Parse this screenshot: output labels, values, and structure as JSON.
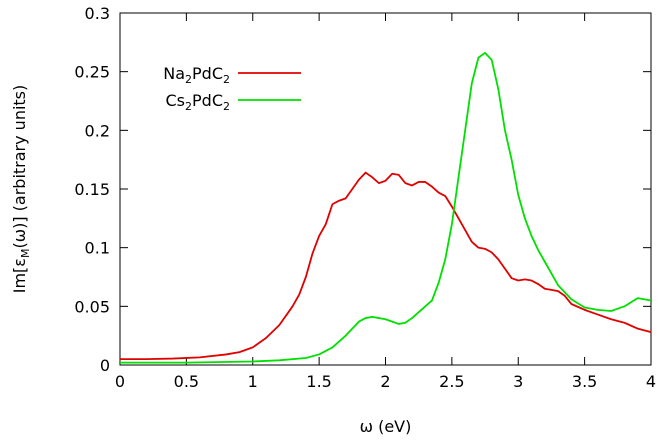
{
  "chart_data": {
    "type": "line",
    "xlabel": "ω (eV)",
    "ylabel": {
      "pre": "Im[ε",
      "sub": "M",
      "post": "(ω)] (arbitrary units)"
    },
    "xlim": [
      0,
      4
    ],
    "ylim": [
      0,
      0.3
    ],
    "x_ticks": [
      "0",
      "0.5",
      "1",
      "1.5",
      "2",
      "2.5",
      "3",
      "3.5",
      "4"
    ],
    "y_ticks": [
      "0",
      "0.05",
      "0.1",
      "0.15",
      "0.2",
      "0.25",
      "0.3"
    ],
    "grid": false,
    "legend_position": "top-left",
    "series": [
      {
        "name": "Na2PdC2",
        "legend_parts": [
          [
            "Na",
            false
          ],
          [
            "2",
            true
          ],
          [
            "PdC",
            false
          ],
          [
            "2",
            true
          ]
        ],
        "color": "#e00000",
        "x": [
          0,
          0.2,
          0.4,
          0.6,
          0.8,
          0.9,
          1.0,
          1.1,
          1.2,
          1.3,
          1.35,
          1.4,
          1.45,
          1.5,
          1.55,
          1.6,
          1.65,
          1.7,
          1.75,
          1.8,
          1.85,
          1.9,
          1.95,
          2.0,
          2.05,
          2.1,
          2.15,
          2.2,
          2.25,
          2.3,
          2.35,
          2.4,
          2.45,
          2.5,
          2.55,
          2.6,
          2.65,
          2.7,
          2.75,
          2.8,
          2.85,
          2.9,
          2.95,
          3.0,
          3.05,
          3.1,
          3.15,
          3.2,
          3.25,
          3.3,
          3.35,
          3.4,
          3.5,
          3.6,
          3.7,
          3.8,
          3.9,
          4.0
        ],
        "y": [
          0.005,
          0.005,
          0.0055,
          0.0065,
          0.009,
          0.011,
          0.015,
          0.023,
          0.034,
          0.05,
          0.06,
          0.075,
          0.095,
          0.11,
          0.12,
          0.137,
          0.14,
          0.142,
          0.15,
          0.158,
          0.164,
          0.16,
          0.155,
          0.157,
          0.163,
          0.162,
          0.155,
          0.153,
          0.156,
          0.156,
          0.152,
          0.147,
          0.144,
          0.135,
          0.125,
          0.115,
          0.105,
          0.1,
          0.099,
          0.096,
          0.09,
          0.082,
          0.074,
          0.072,
          0.073,
          0.072,
          0.069,
          0.065,
          0.064,
          0.063,
          0.059,
          0.052,
          0.047,
          0.043,
          0.039,
          0.036,
          0.031,
          0.028
        ]
      },
      {
        "name": "Cs2PdC2",
        "legend_parts": [
          [
            "Cs",
            false
          ],
          [
            "2",
            true
          ],
          [
            "PdC",
            false
          ],
          [
            "2",
            true
          ]
        ],
        "color": "#00e000",
        "x": [
          0,
          0.5,
          1.0,
          1.2,
          1.4,
          1.5,
          1.6,
          1.7,
          1.75,
          1.8,
          1.85,
          1.9,
          1.95,
          2.0,
          2.05,
          2.1,
          2.15,
          2.2,
          2.25,
          2.3,
          2.35,
          2.4,
          2.45,
          2.5,
          2.55,
          2.6,
          2.65,
          2.7,
          2.75,
          2.8,
          2.85,
          2.9,
          2.95,
          3.0,
          3.05,
          3.1,
          3.15,
          3.2,
          3.3,
          3.4,
          3.5,
          3.6,
          3.7,
          3.8,
          3.9,
          4.0
        ],
        "y": [
          0.002,
          0.002,
          0.003,
          0.004,
          0.006,
          0.009,
          0.015,
          0.025,
          0.031,
          0.037,
          0.04,
          0.041,
          0.04,
          0.039,
          0.037,
          0.035,
          0.036,
          0.04,
          0.045,
          0.05,
          0.055,
          0.07,
          0.09,
          0.12,
          0.16,
          0.2,
          0.24,
          0.262,
          0.266,
          0.26,
          0.235,
          0.2,
          0.175,
          0.145,
          0.125,
          0.11,
          0.098,
          0.088,
          0.068,
          0.056,
          0.049,
          0.047,
          0.046,
          0.05,
          0.057,
          0.055
        ]
      }
    ]
  }
}
